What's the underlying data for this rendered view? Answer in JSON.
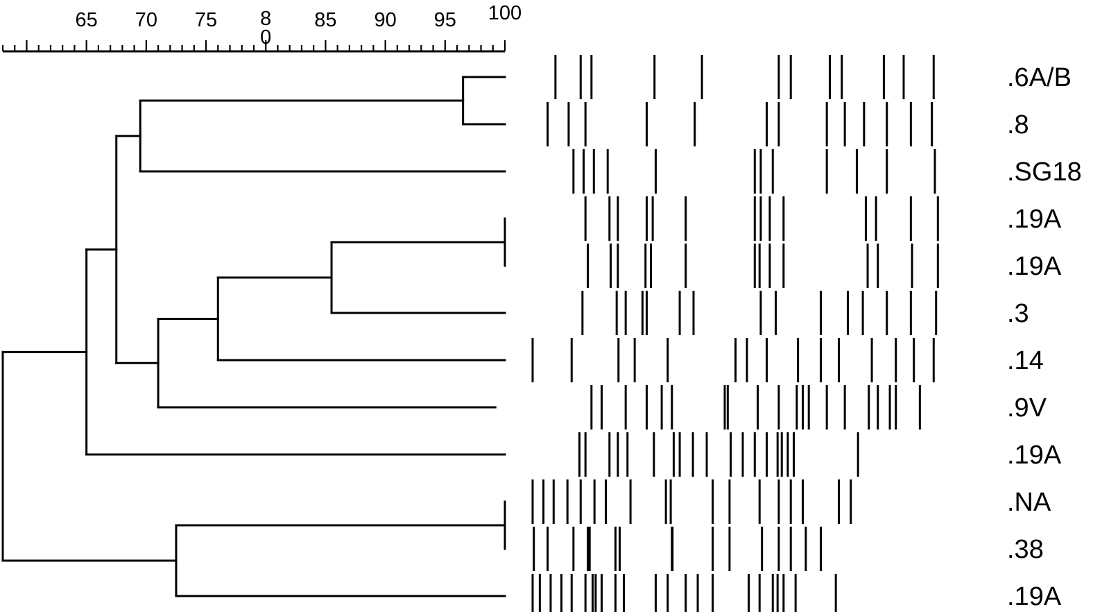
{
  "scale": {
    "tick_labels": [
      "65",
      "70",
      "75",
      "8\n0",
      "85",
      "90",
      "95",
      "100"
    ],
    "range": [
      58,
      100
    ],
    "minor_step": 1,
    "major_step": 5
  },
  "dendrogram": {
    "leaves": [
      ".6A/B",
      ".8",
      ".SG18",
      ".19A",
      ".19A",
      ".3",
      ".14",
      ".9V",
      ".19A",
      ".NA",
      ".38",
      ".19A"
    ],
    "merges": [
      {
        "id": "m_6AB_8",
        "children": [
          0,
          1
        ],
        "similarity": 96.5
      },
      {
        "id": "m_6AB_8_SG18",
        "children": [
          "m_6AB_8",
          2
        ],
        "similarity": 69.5
      },
      {
        "id": "m_19A_19A",
        "children": [
          3,
          4
        ],
        "similarity": 100
      },
      {
        "id": "m_19A_3",
        "children": [
          "m_19A_19A",
          5
        ],
        "similarity": 85.5
      },
      {
        "id": "m_19A_3_14",
        "children": [
          "m_19A_3",
          6
        ],
        "similarity": 76
      },
      {
        "id": "m_9V",
        "children": [
          "m_19A_3_14",
          7
        ],
        "similarity": 71
      },
      {
        "id": "m_big",
        "children": [
          "m_6AB_8_SG18",
          "m_9V"
        ],
        "similarity": 67.5
      },
      {
        "id": "m_big_19A",
        "children": [
          "m_big",
          8
        ],
        "similarity": 65
      },
      {
        "id": "m_NA_38",
        "children": [
          9,
          10
        ],
        "similarity": 100
      },
      {
        "id": "m_NA_38_19A",
        "children": [
          "m_NA_38",
          11
        ],
        "similarity": 72.5
      },
      {
        "id": "root",
        "children": [
          "m_big_19A",
          "m_NA_38_19A"
        ],
        "similarity": 58
      }
    ],
    "leaf_end_similarity": [
      100,
      100,
      100,
      100,
      100,
      100,
      100,
      99.2,
      100,
      100,
      100,
      100
    ]
  },
  "band_pattern_lanes": [
    {
      "label": ".6A/B",
      "bands": [
        0.038,
        0.08,
        0.098,
        0.203,
        0.282,
        0.41,
        0.43,
        0.495,
        0.515,
        0.585,
        0.618,
        0.668
      ]
    },
    {
      "label": ".8",
      "bands": [
        0.025,
        0.06,
        0.088,
        0.19,
        0.27,
        0.39,
        0.41,
        0.49,
        0.52,
        0.552,
        0.59,
        0.63,
        0.665
      ]
    },
    {
      "label": ".SG18",
      "bands": [
        0.068,
        0.085,
        0.102,
        0.125,
        0.205,
        0.37,
        0.38,
        0.4,
        0.49,
        0.54,
        0.59,
        0.67
      ]
    },
    {
      "label": ".19A",
      "bands": [
        0.088,
        0.128,
        0.142,
        0.19,
        0.2,
        0.255,
        0.37,
        0.38,
        0.395,
        0.418,
        0.555,
        0.572,
        0.63,
        0.675
      ]
    },
    {
      "label": ".19A",
      "bands": [
        0.092,
        0.13,
        0.142,
        0.188,
        0.197,
        0.255,
        0.37,
        0.378,
        0.395,
        0.418,
        0.558,
        0.575,
        0.632,
        0.675
      ]
    },
    {
      "label": ".3",
      "bands": [
        0.083,
        0.14,
        0.155,
        0.183,
        0.19,
        0.245,
        0.268,
        0.38,
        0.405,
        0.48,
        0.525,
        0.55,
        0.59,
        0.63,
        0.672
      ]
    },
    {
      "label": ".14",
      "bands": [
        0.0,
        0.065,
        0.143,
        0.17,
        0.225,
        0.338,
        0.357,
        0.39,
        0.442,
        0.48,
        0.51,
        0.565,
        0.605,
        0.635,
        0.668
      ]
    },
    {
      "label": ".9V",
      "bands": [
        0.098,
        0.115,
        0.155,
        0.19,
        0.215,
        0.232,
        0.32,
        0.325,
        0.375,
        0.41,
        0.44,
        0.45,
        0.46,
        0.49,
        0.52,
        0.56,
        0.575,
        0.595,
        0.605,
        0.645
      ]
    },
    {
      "label": ".19A",
      "bands": [
        0.078,
        0.088,
        0.128,
        0.142,
        0.158,
        0.202,
        0.235,
        0.245,
        0.267,
        0.29,
        0.33,
        0.35,
        0.37,
        0.39,
        0.408,
        0.415,
        0.425,
        0.435,
        0.542
      ]
    },
    {
      "label": ".NA",
      "bands": [
        0.0,
        0.018,
        0.035,
        0.058,
        0.08,
        0.103,
        0.122,
        0.163,
        0.222,
        0.23,
        0.3,
        0.328,
        0.378,
        0.41,
        0.43,
        0.45,
        0.51,
        0.53
      ]
    },
    {
      "label": ".38",
      "bands": [
        0.002,
        0.025,
        0.068,
        0.092,
        0.095,
        0.138,
        0.145,
        0.232,
        0.233,
        0.3,
        0.328,
        0.382,
        0.41,
        0.43,
        0.455,
        0.48
      ]
    },
    {
      "label": ".19A",
      "bands": [
        0.0,
        0.012,
        0.03,
        0.048,
        0.065,
        0.088,
        0.1,
        0.105,
        0.115,
        0.138,
        0.152,
        0.205,
        0.225,
        0.255,
        0.275,
        0.3,
        0.36,
        0.378,
        0.4,
        0.408,
        0.418,
        0.438,
        0.505
      ]
    }
  ]
}
